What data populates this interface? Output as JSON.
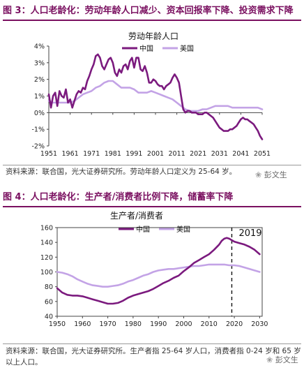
{
  "figure1": {
    "heading": "图 3：人口老龄化：劳动年龄人口减少、资本回报率下降、投资需求下降",
    "source": "资料来源：联合国，光大证券研究所。劳动年龄人口定义为 25-64 岁。"
  },
  "figure2": {
    "heading": "图 4：人口老龄化：生产者/消费者比例下降，储蓄率下降",
    "source": "资料来源：联合国，光大证券研究所。生产者指 25-64 岁人口，消费者指 0-24 岁和 65 岁以上人口。"
  },
  "watermark": "彭文生",
  "colors": {
    "china": "#7b1a7e",
    "usa": "#c3a3e6",
    "accent": "#7a1060"
  },
  "chart_data": [
    {
      "type": "line",
      "title": "劳动年龄人口",
      "legend_position": "top",
      "x_ticks": [
        1951,
        1961,
        1971,
        1981,
        1991,
        2001,
        2011,
        2021,
        2031,
        2041,
        2051
      ],
      "y_ticks": [
        "-2%",
        "-1%",
        "0%",
        "1%",
        "2%",
        "3%",
        "4%"
      ],
      "ylim": [
        -2,
        4
      ],
      "xlim": [
        1951,
        2051
      ],
      "series": [
        {
          "name": "中国",
          "color": "#7b1a7e",
          "x": [
            1951,
            1952,
            1953,
            1954,
            1955,
            1956,
            1957,
            1958,
            1959,
            1960,
            1961,
            1962,
            1963,
            1964,
            1965,
            1966,
            1967,
            1968,
            1969,
            1970,
            1971,
            1972,
            1973,
            1974,
            1975,
            1976,
            1977,
            1978,
            1979,
            1980,
            1981,
            1982,
            1983,
            1984,
            1985,
            1986,
            1987,
            1988,
            1989,
            1990,
            1991,
            1992,
            1993,
            1994,
            1995,
            1996,
            1997,
            1998,
            1999,
            2000,
            2001,
            2002,
            2003,
            2004,
            2005,
            2006,
            2007,
            2008,
            2009,
            2010,
            2011,
            2012,
            2013,
            2014,
            2015,
            2016,
            2017,
            2018,
            2019,
            2020,
            2021,
            2022,
            2023,
            2024,
            2025,
            2026,
            2027,
            2028,
            2029,
            2030,
            2031,
            2032,
            2033,
            2034,
            2035,
            2036,
            2037,
            2038,
            2039,
            2040,
            2041,
            2042,
            2043,
            2044,
            2045,
            2046,
            2047,
            2048,
            2049,
            2050,
            2051
          ],
          "values": [
            1.1,
            0.3,
            1.0,
            1.2,
            0.4,
            1.3,
            1.0,
            0.9,
            1.4,
            0.6,
            0.8,
            0.3,
            0.7,
            1.1,
            1.3,
            1.2,
            1.5,
            1.4,
            1.9,
            2.2,
            2.6,
            2.9,
            3.4,
            3.5,
            3.3,
            2.8,
            2.6,
            2.9,
            3.2,
            3.3,
            3.0,
            2.4,
            2.2,
            2.6,
            2.4,
            2.8,
            2.9,
            2.6,
            3.1,
            3.3,
            2.7,
            3.3,
            3.3,
            2.6,
            2.5,
            2.8,
            2.4,
            1.8,
            1.8,
            2.0,
            1.9,
            1.7,
            1.6,
            1.6,
            1.4,
            1.6,
            1.7,
            1.8,
            2.1,
            2.3,
            2.1,
            1.8,
            1.0,
            0.2,
            0.0,
            0.1,
            0.1,
            0.0,
            0.0,
            0.0,
            -0.1,
            -0.1,
            -0.1,
            0.0,
            0.0,
            -0.1,
            -0.2,
            -0.3,
            -0.5,
            -0.7,
            -0.9,
            -1.0,
            -1.1,
            -1.1,
            -1.1,
            -1.0,
            -1.0,
            -0.9,
            -0.8,
            -0.6,
            -0.4,
            -0.3,
            -0.4,
            -0.4,
            -0.5,
            -0.6,
            -0.7,
            -0.9,
            -1.1,
            -1.4,
            -1.6
          ]
        },
        {
          "name": "美国",
          "color": "#c3a3e6",
          "x": [
            1951,
            1953,
            1955,
            1957,
            1959,
            1961,
            1963,
            1965,
            1967,
            1969,
            1971,
            1973,
            1975,
            1977,
            1979,
            1981,
            1983,
            1985,
            1987,
            1989,
            1991,
            1993,
            1995,
            1997,
            1999,
            2001,
            2003,
            2005,
            2007,
            2009,
            2011,
            2013,
            2015,
            2017,
            2019,
            2021,
            2023,
            2025,
            2027,
            2029,
            2031,
            2033,
            2035,
            2037,
            2039,
            2041,
            2043,
            2045,
            2047,
            2049,
            2051
          ],
          "values": [
            0.7,
            0.6,
            0.6,
            0.6,
            0.6,
            0.6,
            0.7,
            0.9,
            1.1,
            1.2,
            1.3,
            1.5,
            1.6,
            1.8,
            1.9,
            1.9,
            1.7,
            1.5,
            1.5,
            1.5,
            1.4,
            1.2,
            1.2,
            1.2,
            1.3,
            1.2,
            1.1,
            1.0,
            0.9,
            0.8,
            0.6,
            0.4,
            0.2,
            0.1,
            0.1,
            0.1,
            0.2,
            0.2,
            0.3,
            0.4,
            0.4,
            0.4,
            0.4,
            0.3,
            0.3,
            0.3,
            0.3,
            0.3,
            0.3,
            0.3,
            0.2
          ]
        }
      ]
    },
    {
      "type": "line",
      "title": "生产者/消费者",
      "legend_position": "top-left",
      "annotation": "2019",
      "annotation_x": 2019,
      "x_ticks": [
        1950,
        1960,
        1970,
        1980,
        1990,
        2000,
        2010,
        2020,
        2030
      ],
      "y_ticks": [
        40,
        60,
        80,
        100,
        120,
        140,
        160
      ],
      "ylim": [
        40,
        160
      ],
      "xlim": [
        1950,
        2031
      ],
      "series": [
        {
          "name": "中国",
          "color": "#7b1a7e",
          "x": [
            1950,
            1952,
            1954,
            1956,
            1958,
            1960,
            1962,
            1964,
            1966,
            1968,
            1970,
            1972,
            1974,
            1976,
            1978,
            1980,
            1982,
            1984,
            1986,
            1988,
            1990,
            1992,
            1994,
            1996,
            1998,
            2000,
            2002,
            2004,
            2006,
            2008,
            2010,
            2012,
            2014,
            2015,
            2016,
            2017,
            2018,
            2019,
            2020,
            2022,
            2024,
            2026,
            2028,
            2030
          ],
          "values": [
            78,
            72,
            69,
            68,
            68,
            67,
            65,
            63,
            61,
            59,
            57,
            57,
            58,
            61,
            65,
            68,
            70,
            72,
            74,
            77,
            81,
            85,
            88,
            92,
            95,
            101,
            106,
            112,
            116,
            120,
            124,
            130,
            137,
            142,
            145,
            146,
            145,
            143,
            141,
            139,
            137,
            134,
            130,
            124
          ]
        },
        {
          "name": "美国",
          "color": "#c3a3e6",
          "x": [
            1950,
            1952,
            1954,
            1956,
            1958,
            1960,
            1962,
            1964,
            1966,
            1968,
            1970,
            1972,
            1974,
            1976,
            1978,
            1980,
            1982,
            1984,
            1986,
            1988,
            1990,
            1992,
            1994,
            1996,
            1998,
            2000,
            2002,
            2004,
            2006,
            2008,
            2010,
            2012,
            2014,
            2016,
            2018,
            2020,
            2022,
            2024,
            2026,
            2028,
            2030
          ],
          "values": [
            100,
            99,
            97,
            94,
            90,
            87,
            84,
            82,
            81,
            80,
            80,
            81,
            82,
            84,
            87,
            89,
            92,
            95,
            97,
            100,
            102,
            103,
            104,
            104,
            105,
            106,
            107,
            108,
            108,
            109,
            110,
            110,
            110,
            110,
            109,
            109,
            108,
            106,
            104,
            102,
            100
          ]
        }
      ]
    }
  ]
}
